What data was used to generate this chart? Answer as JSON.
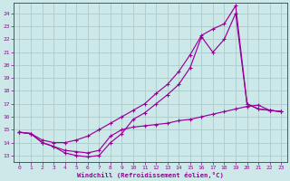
{
  "xlabel": "Windchill (Refroidissement éolien,°C)",
  "background_color": "#cce8e8",
  "grid_color": "#aacccc",
  "line_color": "#990099",
  "xlim": [
    -0.5,
    23.5
  ],
  "ylim": [
    12.5,
    24.8
  ],
  "xticks": [
    0,
    1,
    2,
    3,
    4,
    5,
    6,
    7,
    8,
    9,
    10,
    11,
    12,
    13,
    14,
    15,
    16,
    17,
    18,
    19,
    20,
    21,
    22,
    23
  ],
  "yticks": [
    13,
    14,
    15,
    16,
    17,
    18,
    19,
    20,
    21,
    22,
    23,
    24
  ],
  "series1_x": [
    0,
    1,
    2,
    3,
    4,
    5,
    6,
    7,
    8,
    9,
    10,
    11,
    12,
    13,
    14,
    15,
    16,
    17,
    18,
    19,
    20,
    21,
    22,
    23
  ],
  "series1_y": [
    14.8,
    14.7,
    14.0,
    13.7,
    13.2,
    13.0,
    12.9,
    13.0,
    14.0,
    14.7,
    15.8,
    16.3,
    17.0,
    17.7,
    18.5,
    19.8,
    22.2,
    21.0,
    22.0,
    24.0,
    17.0,
    16.6,
    16.5,
    16.4
  ],
  "series2_x": [
    0,
    1,
    2,
    3,
    4,
    5,
    6,
    7,
    8,
    9,
    10,
    11,
    12,
    13,
    14,
    15,
    16,
    17,
    18,
    19,
    20,
    21,
    22,
    23
  ],
  "series2_y": [
    14.8,
    14.7,
    14.0,
    13.7,
    13.4,
    13.3,
    13.2,
    13.4,
    14.5,
    15.0,
    15.2,
    15.3,
    15.4,
    15.5,
    15.7,
    15.8,
    16.0,
    16.2,
    16.4,
    16.6,
    16.8,
    16.9,
    16.5,
    16.4
  ],
  "series3_x": [
    0,
    1,
    2,
    3,
    4,
    5,
    6,
    7,
    8,
    9,
    10,
    11,
    12,
    13,
    14,
    15,
    16,
    17,
    18,
    19,
    20,
    21,
    22,
    23
  ],
  "series3_y": [
    14.8,
    14.7,
    14.2,
    14.0,
    14.0,
    14.2,
    14.5,
    15.0,
    15.5,
    16.0,
    16.5,
    17.0,
    17.8,
    18.5,
    19.5,
    20.8,
    22.3,
    22.8,
    23.2,
    24.6,
    17.0,
    16.6,
    16.5,
    16.4
  ]
}
